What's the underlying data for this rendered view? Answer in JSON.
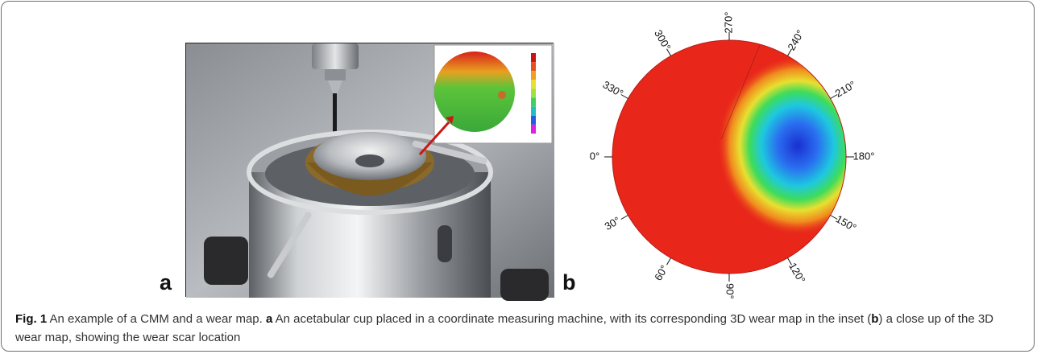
{
  "figure": {
    "panel_a_letter": "a",
    "panel_b_letter": "b",
    "angle_labels": [
      "0°",
      "30°",
      "60°",
      "90°",
      "120°",
      "150°",
      "180°",
      "210°",
      "240°",
      "270°",
      "300°",
      "330°"
    ],
    "colors": {
      "unworn": "#e8261a",
      "wear_center": "#1a2fd1",
      "frame": "#6f6f6f"
    },
    "colorbar_colors": [
      "#c81414",
      "#e8501e",
      "#f0a020",
      "#e8e030",
      "#a0e040",
      "#40d060",
      "#20c0c0",
      "#2060e0",
      "#e020e0"
    ]
  },
  "caption": {
    "fig_label": "Fig. 1",
    "intro": "An example of a CMM and a wear map.",
    "a_label": "a",
    "a_text": "An acetabular cup placed in a coordinate measuring machine, with its corresponding 3D wear map in the inset (",
    "b_label": "b",
    "b_text": ") a close up of the 3D wear map, showing the wear scar location"
  }
}
